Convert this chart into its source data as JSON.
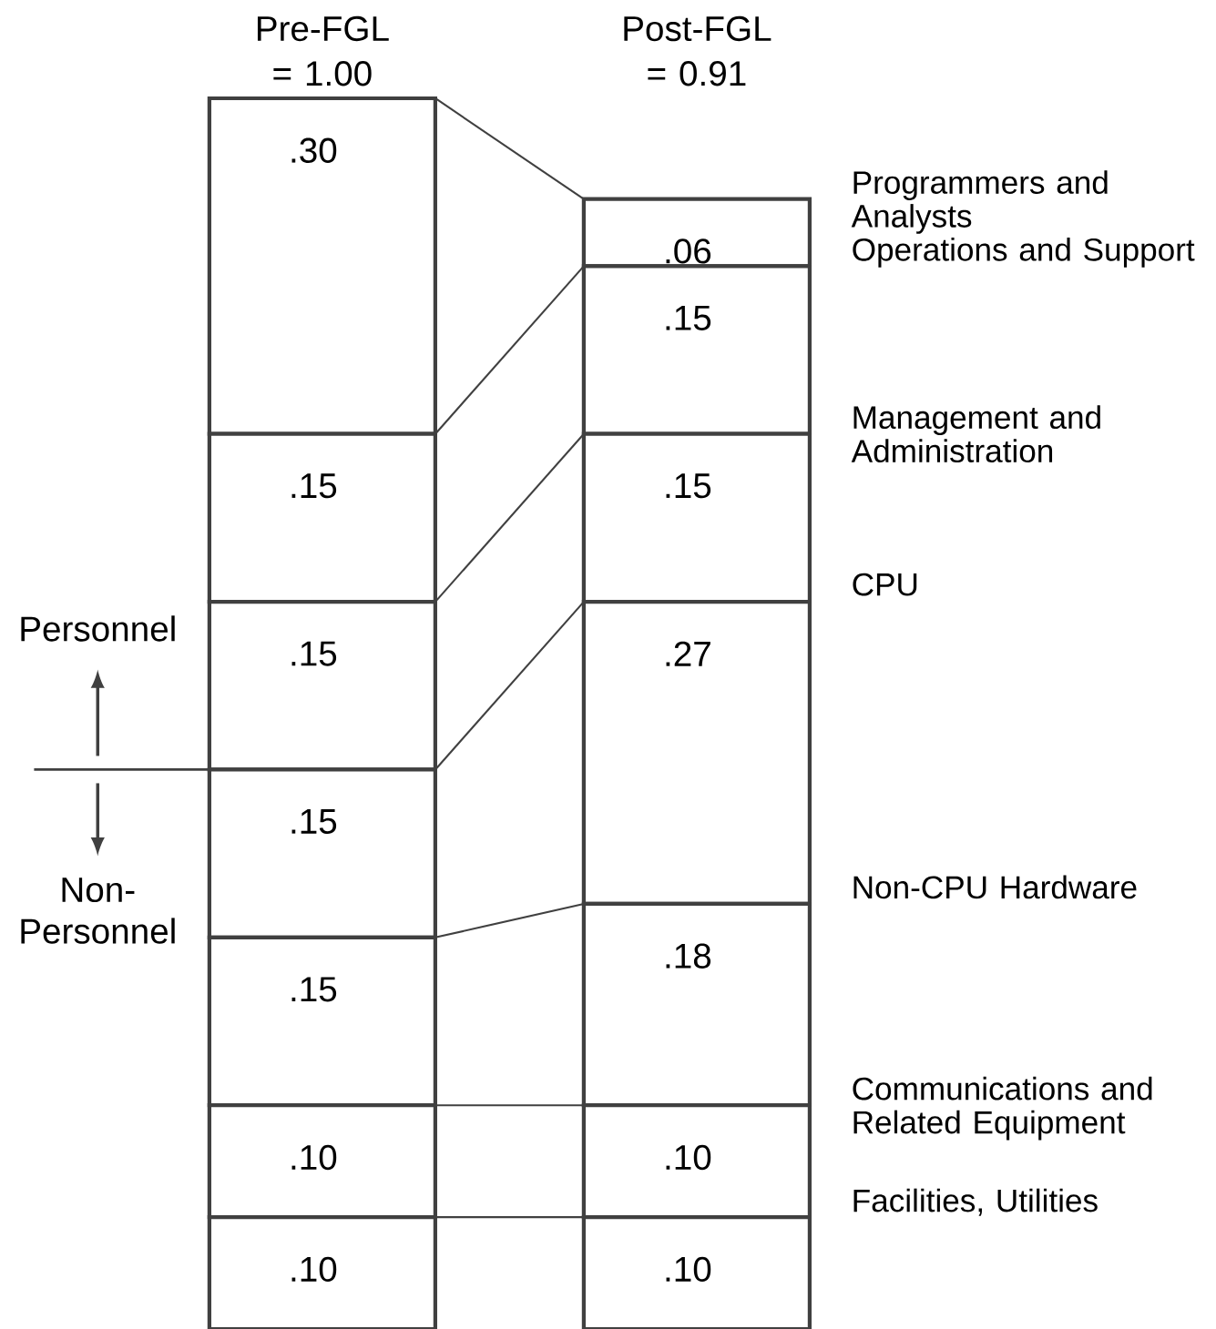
{
  "chart_data": {
    "type": "bar",
    "stacked": true,
    "categories": [
      "Pre-FGL = 1.00",
      "Post-FGL = 0.91"
    ],
    "series": [
      {
        "name": "Facilities, Utilities",
        "color": "#ffffff",
        "values": [
          0.1,
          0.1
        ],
        "value_labels": [
          ".10",
          ".10"
        ]
      },
      {
        "name": "Communications and Related Equipment",
        "color": "#ffffff",
        "values": [
          0.1,
          0.1
        ],
        "value_labels": [
          ".10",
          ".10"
        ]
      },
      {
        "name": "Non-CPU Hardware",
        "color": "#ffffff",
        "values": [
          0.15,
          0.18
        ],
        "value_labels": [
          ".15",
          ".18"
        ]
      },
      {
        "name": "CPU",
        "color": "#ffffff",
        "values": [
          0.15,
          0.27
        ],
        "value_labels": [
          ".15",
          ".27"
        ]
      },
      {
        "name": "Management and Administration",
        "color": "#ffffff",
        "values": [
          0.15,
          0.15
        ],
        "value_labels": [
          ".15",
          ".15"
        ]
      },
      {
        "name": "Operations and Support",
        "color": "#ffffff",
        "values": [
          0.15,
          0.15
        ],
        "value_labels": [
          ".15",
          ".15"
        ]
      },
      {
        "name": "Programmers and Analysts",
        "color": "#ffffff",
        "values": [
          0.3,
          0.06
        ],
        "value_labels": [
          ".30",
          ".06"
        ]
      }
    ],
    "ref_lines": [
      {
        "axis": "y",
        "value": 0.5
      }
    ],
    "annotations": [
      "Personnel",
      "Non-Personnel"
    ]
  }
}
